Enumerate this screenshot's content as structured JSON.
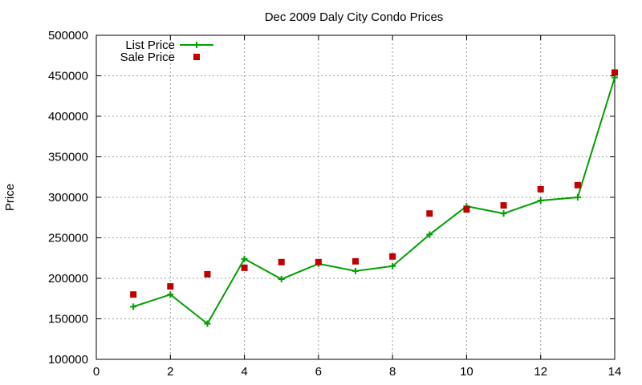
{
  "chart_data": {
    "type": "line",
    "title": "Dec 2009 Daly City Condo Prices",
    "xlabel": "",
    "ylabel": "Price",
    "xlim": [
      0,
      14
    ],
    "ylim": [
      100000,
      500000
    ],
    "xticks": [
      0,
      2,
      4,
      6,
      8,
      10,
      12,
      14
    ],
    "yticks": [
      100000,
      150000,
      200000,
      250000,
      300000,
      350000,
      400000,
      450000,
      500000
    ],
    "grid": true,
    "legend_position": "top-left",
    "series": [
      {
        "name": "List Price",
        "style": "line-with-plus-markers",
        "color": "#00a000",
        "x": [
          1,
          2,
          3,
          4,
          5,
          6,
          7,
          8,
          9,
          10,
          11,
          12,
          13,
          14
        ],
        "y": [
          165000,
          180000,
          144000,
          224000,
          199000,
          218000,
          209000,
          215000,
          254000,
          289000,
          280000,
          296000,
          300000,
          448000
        ]
      },
      {
        "name": "Sale Price",
        "style": "square-markers",
        "color": "#c00000",
        "x": [
          1,
          2,
          3,
          4,
          5,
          6,
          7,
          8,
          9,
          10,
          11,
          12,
          13,
          14
        ],
        "y": [
          180000,
          190000,
          205000,
          213000,
          220000,
          220000,
          221000,
          227000,
          280000,
          285000,
          290000,
          310000,
          315000,
          454000
        ]
      }
    ]
  }
}
